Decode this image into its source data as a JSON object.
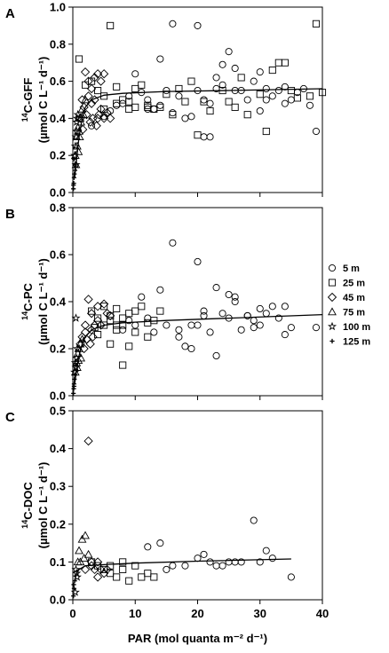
{
  "chart_data": [
    {
      "type": "scatter",
      "panel_label": "A",
      "ylabel_prefix": "14",
      "ylabel_main": "C-GFF",
      "ylabel_unit": "(µmol C L⁻¹ d⁻¹)",
      "xlim": [
        0,
        40
      ],
      "ylim": [
        0,
        1.0
      ],
      "yticks": [
        "0.0",
        "0.2",
        "0.4",
        "0.6",
        "0.8",
        "1.0"
      ],
      "xticks": [],
      "fit_curve": [
        [
          0.3,
          0.08
        ],
        [
          0.6,
          0.18
        ],
        [
          1,
          0.3
        ],
        [
          1.5,
          0.4
        ],
        [
          2,
          0.46
        ],
        [
          3,
          0.5
        ],
        [
          5,
          0.525
        ],
        [
          8,
          0.535
        ],
        [
          15,
          0.545
        ],
        [
          25,
          0.55
        ],
        [
          40,
          0.56
        ]
      ],
      "series": [
        {
          "marker": "circle",
          "x": [
            10,
            14,
            16,
            20,
            21,
            22,
            23,
            24,
            25,
            26,
            29,
            30,
            31,
            33,
            35,
            38,
            39,
            12,
            15,
            17,
            18,
            20,
            22,
            24,
            26,
            28,
            30,
            32,
            34,
            36,
            13,
            14,
            16,
            19,
            21,
            23,
            27,
            31,
            34,
            37,
            11,
            12,
            8,
            9,
            7,
            6,
            5,
            3
          ],
          "y": [
            0.64,
            0.72,
            0.91,
            0.9,
            0.3,
            0.3,
            0.62,
            0.69,
            0.76,
            0.67,
            0.6,
            0.65,
            0.56,
            0.55,
            0.5,
            0.47,
            0.33,
            0.5,
            0.55,
            0.52,
            0.4,
            0.55,
            0.48,
            0.58,
            0.55,
            0.5,
            0.44,
            0.52,
            0.57,
            0.54,
            0.45,
            0.47,
            0.43,
            0.41,
            0.5,
            0.56,
            0.55,
            0.5,
            0.48,
            0.56,
            0.54,
            0.45,
            0.48,
            0.52,
            0.47,
            0.44,
            0.41,
            0.36
          ]
        },
        {
          "marker": "square",
          "x": [
            1,
            6,
            9,
            10,
            11,
            13,
            14,
            15,
            16,
            17,
            18,
            22,
            27,
            32,
            33,
            34,
            39,
            40,
            4,
            5,
            7,
            8,
            10,
            12,
            19,
            21,
            24,
            26,
            28,
            30,
            36,
            38,
            5,
            7,
            9,
            12,
            20,
            25,
            31,
            35,
            2,
            3
          ],
          "y": [
            0.72,
            0.9,
            0.49,
            0.56,
            0.58,
            0.45,
            0.46,
            0.53,
            0.42,
            0.56,
            0.49,
            0.44,
            0.62,
            0.66,
            0.7,
            0.7,
            0.91,
            0.54,
            0.55,
            0.52,
            0.57,
            0.5,
            0.46,
            0.47,
            0.6,
            0.49,
            0.55,
            0.46,
            0.42,
            0.53,
            0.51,
            0.52,
            0.45,
            0.48,
            0.45,
            0.46,
            0.31,
            0.49,
            0.33,
            0.55,
            0.58,
            0.6
          ]
        },
        {
          "marker": "diamond",
          "x": [
            2,
            2.5,
            3,
            3.5,
            4,
            4.5,
            5,
            6,
            1.5,
            2.5,
            3,
            3.5,
            4,
            4.5,
            5,
            5.5,
            1.8,
            2.2,
            2.8,
            3.2,
            3.8,
            4.2,
            1.2,
            1.6
          ],
          "y": [
            0.65,
            0.6,
            0.56,
            0.62,
            0.64,
            0.6,
            0.64,
            0.4,
            0.5,
            0.52,
            0.48,
            0.5,
            0.4,
            0.45,
            0.4,
            0.43,
            0.46,
            0.42,
            0.38,
            0.4,
            0.36,
            0.42,
            0.4,
            0.34
          ]
        },
        {
          "marker": "triangle",
          "x": [
            0.8,
            1.2,
            1.5,
            2,
            0.6,
            1,
            1.3,
            1.7,
            0.4,
            0.7,
            1.1,
            0.5,
            0.9
          ],
          "y": [
            0.35,
            0.4,
            0.45,
            0.5,
            0.3,
            0.33,
            0.38,
            0.42,
            0.2,
            0.25,
            0.3,
            0.15,
            0.22
          ]
        },
        {
          "marker": "star",
          "x": [
            0.3,
            0.4,
            0.5,
            0.6,
            0.7,
            0.8,
            0.5,
            0.6
          ],
          "y": [
            0.2,
            0.25,
            0.3,
            0.38,
            0.4,
            0.42,
            0.15,
            0.33
          ]
        },
        {
          "marker": "plus",
          "x": [
            0.1,
            0.15,
            0.2,
            0.25,
            0.3,
            0.35,
            0.2,
            0.1
          ],
          "y": [
            0.02,
            0.05,
            0.08,
            0.1,
            0.15,
            0.12,
            0.18,
            0.04
          ]
        }
      ]
    },
    {
      "type": "scatter",
      "panel_label": "B",
      "ylabel_prefix": "14",
      "ylabel_main": "C-PC",
      "ylabel_unit": "(µmol C L⁻¹ d⁻¹)",
      "xlim": [
        0,
        40
      ],
      "ylim": [
        0,
        0.8
      ],
      "yticks": [
        "0.0",
        "0.2",
        "0.4",
        "0.6",
        "0.8"
      ],
      "xticks": [],
      "fit_curve": [
        [
          0.3,
          0.05
        ],
        [
          0.6,
          0.11
        ],
        [
          1,
          0.17
        ],
        [
          1.5,
          0.22
        ],
        [
          2,
          0.25
        ],
        [
          3,
          0.28
        ],
        [
          5,
          0.3
        ],
        [
          8,
          0.31
        ],
        [
          15,
          0.32
        ],
        [
          25,
          0.33
        ],
        [
          40,
          0.345
        ]
      ],
      "series": [
        {
          "marker": "circle",
          "x": [
            10,
            11,
            13,
            14,
            16,
            17,
            19,
            20,
            21,
            22,
            23,
            24,
            25,
            26,
            27,
            28,
            29,
            30,
            31,
            33,
            34,
            35,
            39,
            12,
            15,
            18,
            19,
            23,
            25,
            28,
            30,
            32,
            34,
            17,
            26,
            20,
            29,
            21,
            9,
            8
          ],
          "y": [
            0.3,
            0.42,
            0.27,
            0.45,
            0.65,
            0.25,
            0.2,
            0.57,
            0.36,
            0.27,
            0.46,
            0.35,
            0.43,
            0.42,
            0.28,
            0.34,
            0.32,
            0.37,
            0.35,
            0.33,
            0.38,
            0.29,
            0.29,
            0.33,
            0.3,
            0.21,
            0.3,
            0.17,
            0.33,
            0.34,
            0.3,
            0.38,
            0.26,
            0.28,
            0.4,
            0.3,
            0.29,
            0.34,
            0.32,
            0.28
          ]
        },
        {
          "marker": "square",
          "x": [
            3,
            4,
            5,
            6,
            7,
            8,
            9,
            10,
            11,
            12,
            13,
            14,
            5,
            6,
            7,
            8,
            4,
            9,
            10,
            6,
            7,
            8,
            12,
            3.5
          ],
          "y": [
            0.36,
            0.33,
            0.38,
            0.34,
            0.37,
            0.3,
            0.35,
            0.36,
            0.38,
            0.25,
            0.32,
            0.36,
            0.3,
            0.32,
            0.28,
            0.13,
            0.26,
            0.21,
            0.27,
            0.22,
            0.3,
            0.33,
            0.31,
            0.29
          ]
        },
        {
          "marker": "diamond",
          "x": [
            2,
            2.5,
            3,
            3.5,
            4,
            5,
            5.5,
            6,
            1.5,
            2,
            3,
            4,
            4.5,
            2.8,
            3.2,
            1.8,
            1.2,
            2.2
          ],
          "y": [
            0.3,
            0.41,
            0.35,
            0.3,
            0.38,
            0.39,
            0.35,
            0.34,
            0.25,
            0.27,
            0.28,
            0.32,
            0.3,
            0.22,
            0.25,
            0.2,
            0.22,
            0.24
          ]
        },
        {
          "marker": "triangle",
          "x": [
            0.8,
            1.2,
            1.5,
            0.6,
            1,
            1.3,
            0.4,
            0.7,
            0.9
          ],
          "y": [
            0.18,
            0.22,
            0.24,
            0.14,
            0.2,
            0.16,
            0.1,
            0.12,
            0.15
          ]
        },
        {
          "marker": "star",
          "x": [
            0.3,
            0.4,
            0.5,
            0.6,
            0.7,
            0.5
          ],
          "y": [
            0.1,
            0.14,
            0.33,
            0.16,
            0.2,
            0.12
          ]
        },
        {
          "marker": "plus",
          "x": [
            0.1,
            0.15,
            0.2,
            0.25,
            0.3,
            0.2
          ],
          "y": [
            0.01,
            0.03,
            0.05,
            0.07,
            0.09,
            0.04
          ]
        }
      ]
    },
    {
      "type": "scatter",
      "panel_label": "C",
      "ylabel_prefix": "14",
      "ylabel_main": "C-DOC",
      "ylabel_unit": "(µmol C L⁻¹ d⁻¹)",
      "xlim": [
        0,
        40
      ],
      "ylim": [
        0,
        0.5
      ],
      "yticks": [
        "0.0",
        "0.1",
        "0.2",
        "0.3",
        "0.4",
        "0.5"
      ],
      "xticks": [
        "0",
        "10",
        "20",
        "30",
        "40"
      ],
      "xlabel": "PAR (mol quanta m⁻² d⁻¹)",
      "fit_curve": [
        [
          0.3,
          0.05
        ],
        [
          0.6,
          0.07
        ],
        [
          1,
          0.08
        ],
        [
          1.5,
          0.085
        ],
        [
          2,
          0.09
        ],
        [
          5,
          0.093
        ],
        [
          10,
          0.097
        ],
        [
          20,
          0.102
        ],
        [
          35,
          0.108
        ]
      ],
      "series": [
        {
          "marker": "circle",
          "x": [
            12,
            14,
            16,
            18,
            20,
            22,
            24,
            25,
            27,
            29,
            30,
            31,
            32,
            35,
            26,
            15,
            21,
            23
          ],
          "y": [
            0.14,
            0.15,
            0.09,
            0.09,
            0.11,
            0.1,
            0.09,
            0.1,
            0.1,
            0.21,
            0.1,
            0.13,
            0.11,
            0.06,
            0.1,
            0.08,
            0.12,
            0.09
          ]
        },
        {
          "marker": "square",
          "x": [
            3,
            5,
            6,
            7,
            8,
            9,
            10,
            11,
            12,
            4,
            6,
            8,
            13
          ],
          "y": [
            0.1,
            0.08,
            0.09,
            0.06,
            0.08,
            0.05,
            0.09,
            0.06,
            0.07,
            0.09,
            0.07,
            0.1,
            0.06
          ]
        },
        {
          "marker": "diamond",
          "x": [
            2.5,
            3,
            3.5,
            4,
            4.5,
            5,
            2,
            3,
            4,
            5.5
          ],
          "y": [
            0.42,
            0.09,
            0.08,
            0.1,
            0.08,
            0.07,
            0.08,
            0.1,
            0.06,
            0.08
          ]
        },
        {
          "marker": "triangle",
          "x": [
            1.5,
            2,
            2.5,
            1,
            1.2,
            0.8,
            1.8
          ],
          "y": [
            0.16,
            0.17,
            0.12,
            0.13,
            0.1,
            0.1,
            0.11
          ]
        },
        {
          "marker": "star",
          "x": [
            0.5,
            0.6,
            0.7,
            0.4
          ],
          "y": [
            0.08,
            0.07,
            0.06,
            0.02
          ]
        },
        {
          "marker": "plus",
          "x": [
            0.1,
            0.2,
            0.3,
            0.15
          ],
          "y": [
            0.01,
            0.03,
            0.05,
            0.04
          ]
        }
      ]
    }
  ],
  "legend": {
    "placement": "right",
    "entries": [
      {
        "marker": "circle",
        "label": "5 m"
      },
      {
        "marker": "square",
        "label": "25 m"
      },
      {
        "marker": "diamond",
        "label": "45 m"
      },
      {
        "marker": "triangle",
        "label": "75 m"
      },
      {
        "marker": "star",
        "label": "100 m"
      },
      {
        "marker": "plus",
        "label": "125 m"
      }
    ]
  }
}
